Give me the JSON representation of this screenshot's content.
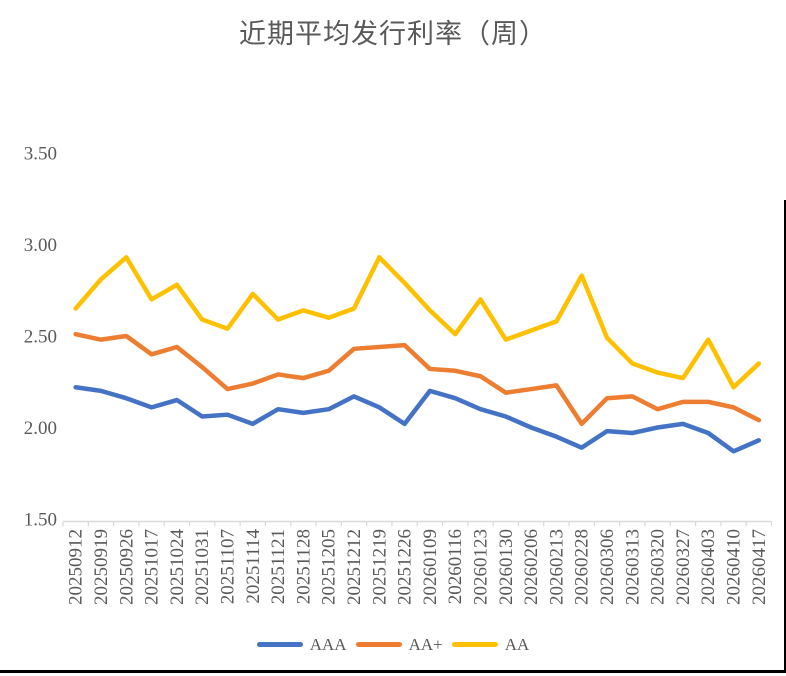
{
  "chart_data": {
    "type": "line",
    "title": "近期平均发行利率（周）",
    "categories": [
      "20250912",
      "20250919",
      "20250926",
      "20251017",
      "20251024",
      "20251031",
      "20251107",
      "20251114",
      "20251121",
      "20251128",
      "20251205",
      "20251212",
      "20251219",
      "20251226",
      "20260109",
      "20260116",
      "20260123",
      "20260130",
      "20260206",
      "20260213",
      "20260228",
      "20260306",
      "20260313",
      "20260320",
      "20260327",
      "20260403",
      "20260410",
      "20260417"
    ],
    "series": [
      {
        "name": "AAA",
        "color": "#4472C4",
        "values": [
          2.22,
          2.2,
          2.16,
          2.11,
          2.15,
          2.06,
          2.07,
          2.02,
          2.1,
          2.08,
          2.1,
          2.17,
          2.11,
          2.02,
          2.2,
          2.16,
          2.1,
          2.06,
          2.0,
          1.95,
          1.89,
          1.98,
          1.97,
          2.0,
          2.02,
          1.97,
          1.87,
          1.93
        ]
      },
      {
        "name": "AA+",
        "color": "#ED7D31",
        "values": [
          2.51,
          2.48,
          2.5,
          2.4,
          2.44,
          2.33,
          2.21,
          2.24,
          2.29,
          2.27,
          2.31,
          2.43,
          2.44,
          2.45,
          2.32,
          2.31,
          2.28,
          2.19,
          2.21,
          2.23,
          2.02,
          2.16,
          2.17,
          2.1,
          2.14,
          2.14,
          2.11,
          2.04
        ]
      },
      {
        "name": "AA",
        "color": "#FFC000",
        "values": [
          2.65,
          2.81,
          2.93,
          2.7,
          2.78,
          2.59,
          2.54,
          2.73,
          2.59,
          2.64,
          2.6,
          2.65,
          2.93,
          2.79,
          2.64,
          2.51,
          2.7,
          2.48,
          2.53,
          2.58,
          2.83,
          2.49,
          2.35,
          2.3,
          2.27,
          2.48,
          2.22,
          2.35
        ]
      }
    ],
    "y_axis": {
      "ticks": [
        "3.50",
        "3.00",
        "2.50",
        "2.00",
        "1.50"
      ],
      "min": 1.5,
      "max": 3.5
    },
    "grid": false,
    "legend_position": "bottom",
    "colors": {
      "axis_line": "#D9D9D9",
      "axis_text": "#595959",
      "title_text": "#595959"
    }
  }
}
